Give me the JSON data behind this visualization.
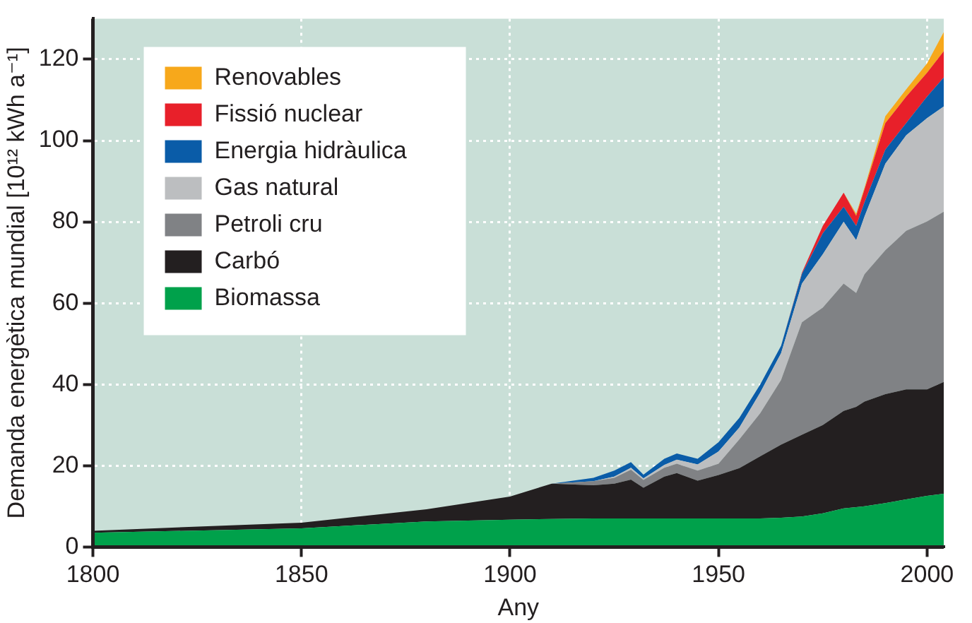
{
  "chart_data": {
    "type": "area",
    "stacked": true,
    "xlabel": "Any",
    "ylabel": "Demanda energètica mundial [10¹² kWh a⁻¹]",
    "x": [
      1800,
      1850,
      1880,
      1900,
      1910,
      1920,
      1925,
      1929,
      1932,
      1937,
      1940,
      1945,
      1950,
      1955,
      1960,
      1965,
      1970,
      1975,
      1980,
      1983,
      1985,
      1990,
      1995,
      2000,
      2004
    ],
    "xlim": [
      1800,
      2004
    ],
    "xticks": [
      1800,
      1850,
      1900,
      1950,
      2000
    ],
    "ylim": [
      0,
      130
    ],
    "yticks": [
      0,
      20,
      40,
      60,
      80,
      100,
      120
    ],
    "grid": true,
    "legend": "top left",
    "series": [
      {
        "name": "Biomassa",
        "color": "#00a14b",
        "values": [
          3.5,
          4.6,
          6.3,
          6.7,
          6.9,
          7.0,
          7.0,
          7.0,
          7.0,
          7.0,
          7.0,
          7.0,
          7.0,
          7.0,
          7.0,
          7.2,
          7.5,
          8.3,
          9.5,
          9.8,
          10,
          10.8,
          11.7,
          12.6,
          13.1
        ]
      },
      {
        "name": "Carbó",
        "color": "#231f20",
        "values": [
          0.5,
          1.4,
          3.0,
          5.7,
          8.7,
          8.2,
          8.6,
          9.6,
          7.6,
          10.3,
          11.2,
          9.3,
          10.7,
          12.4,
          15.3,
          18.0,
          20.1,
          21.7,
          24.0,
          24.7,
          25.8,
          26.8,
          27.1,
          26.2,
          27.5
        ]
      },
      {
        "name": "Petroli cru",
        "color": "#808285",
        "values": [
          0,
          0,
          0,
          0,
          0,
          1.0,
          1.4,
          2.4,
          1.9,
          2.2,
          2.3,
          2.5,
          2.8,
          7.1,
          10.6,
          15.9,
          27.7,
          28.9,
          31.3,
          28.0,
          31.3,
          35.4,
          39.0,
          41.3,
          41.9
        ]
      },
      {
        "name": "Gas natural",
        "color": "#bcbec0",
        "values": [
          0,
          0,
          0,
          0,
          0,
          0,
          0.3,
          0.5,
          0.4,
          0.7,
          1.0,
          1.5,
          3.0,
          2.9,
          5.1,
          6.6,
          9.5,
          13.1,
          15.2,
          13.0,
          14.2,
          21.3,
          23.5,
          25.4,
          25.9
        ]
      },
      {
        "name": "Energia hidràulica",
        "color": "#0a5ca8",
        "values": [
          0,
          0,
          0,
          0,
          0,
          0.8,
          1.5,
          1.4,
          0.9,
          1.5,
          1.5,
          1.4,
          2.3,
          2.4,
          2.0,
          1.8,
          2.4,
          5.2,
          3.7,
          3.5,
          3.5,
          3.5,
          3.0,
          5.3,
          7.1
        ]
      },
      {
        "name": "Fissió nuclear",
        "color": "#e8202a",
        "values": [
          0,
          0,
          0,
          0,
          0,
          0,
          0,
          0,
          0,
          0,
          0,
          0,
          0,
          0,
          0,
          0,
          0.3,
          1.8,
          3.5,
          2.5,
          3.2,
          6.5,
          6.5,
          5.9,
          6.5
        ]
      },
      {
        "name": "Renovables",
        "color": "#f7a81b",
        "values": [
          0,
          0,
          0,
          0,
          0,
          0,
          0,
          0,
          0,
          0,
          0,
          0,
          0,
          0,
          0,
          0,
          0,
          0,
          0,
          0.5,
          0.4,
          1.7,
          1.8,
          2.3,
          4.7
        ]
      }
    ]
  }
}
